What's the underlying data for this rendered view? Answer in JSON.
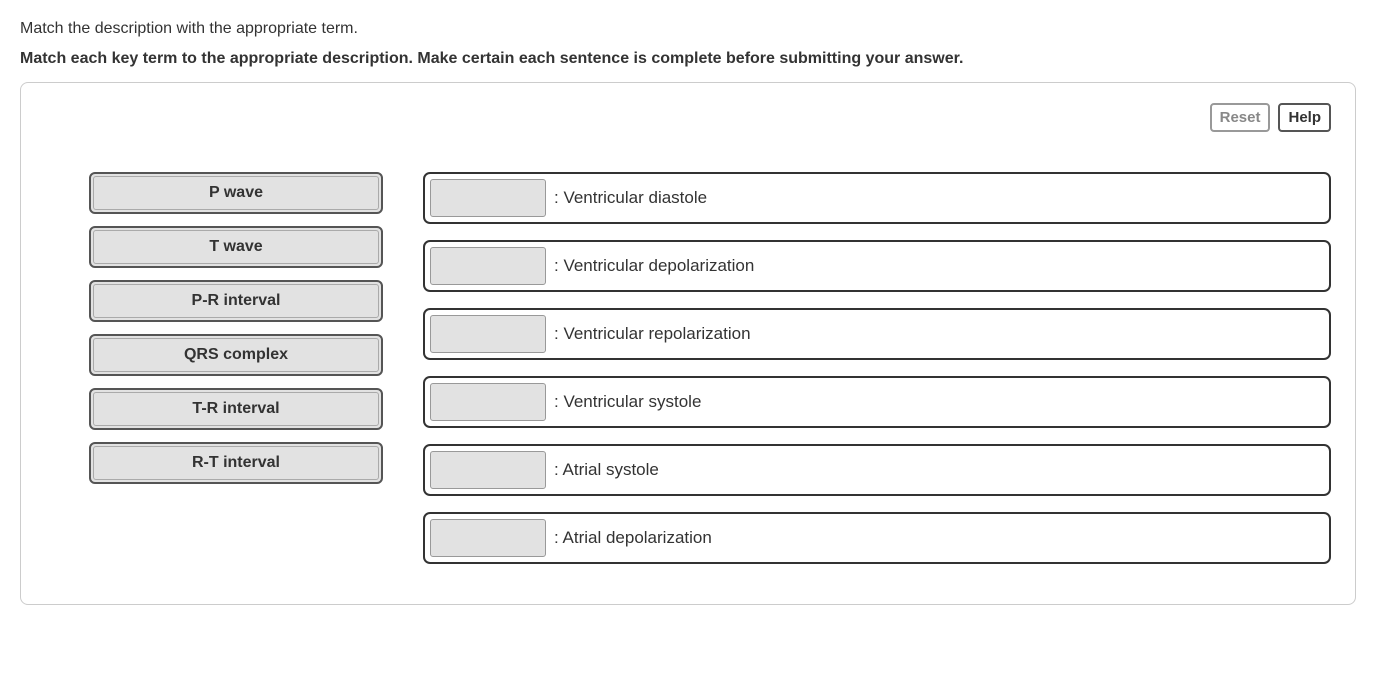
{
  "instructions": {
    "line1": "Match the description with the appropriate term.",
    "line2": "Match each key term to the appropriate description. Make certain each sentence is complete before submitting your answer."
  },
  "toolbar": {
    "reset_label": "Reset",
    "help_label": "Help"
  },
  "terms": [
    {
      "label": "P wave"
    },
    {
      "label": "T wave"
    },
    {
      "label": "P-R interval"
    },
    {
      "label": "QRS complex"
    },
    {
      "label": "T-R interval"
    },
    {
      "label": "R-T interval"
    }
  ],
  "targets": [
    {
      "description": ": Ventricular diastole"
    },
    {
      "description": ": Ventricular depolarization"
    },
    {
      "description": ": Ventricular repolarization"
    },
    {
      "description": ": Ventricular systole"
    },
    {
      "description": ": Atrial systole"
    },
    {
      "description": ": Atrial depolarization"
    }
  ],
  "styling": {
    "page_background": "#ffffff",
    "container_border": "#cccccc",
    "container_border_radius": 8,
    "text_color": "#333333",
    "term_background": "#e2e2e2",
    "term_border": "#555555",
    "term_inner_border": "#aaaaaa",
    "target_border": "#333333",
    "dropzone_background": "#e2e2e2",
    "dropzone_border": "#999999",
    "reset_button_color": "#888888",
    "help_button_color": "#333333",
    "instruction_fontsize": 16,
    "term_fontsize": 16,
    "target_fontsize": 17
  }
}
